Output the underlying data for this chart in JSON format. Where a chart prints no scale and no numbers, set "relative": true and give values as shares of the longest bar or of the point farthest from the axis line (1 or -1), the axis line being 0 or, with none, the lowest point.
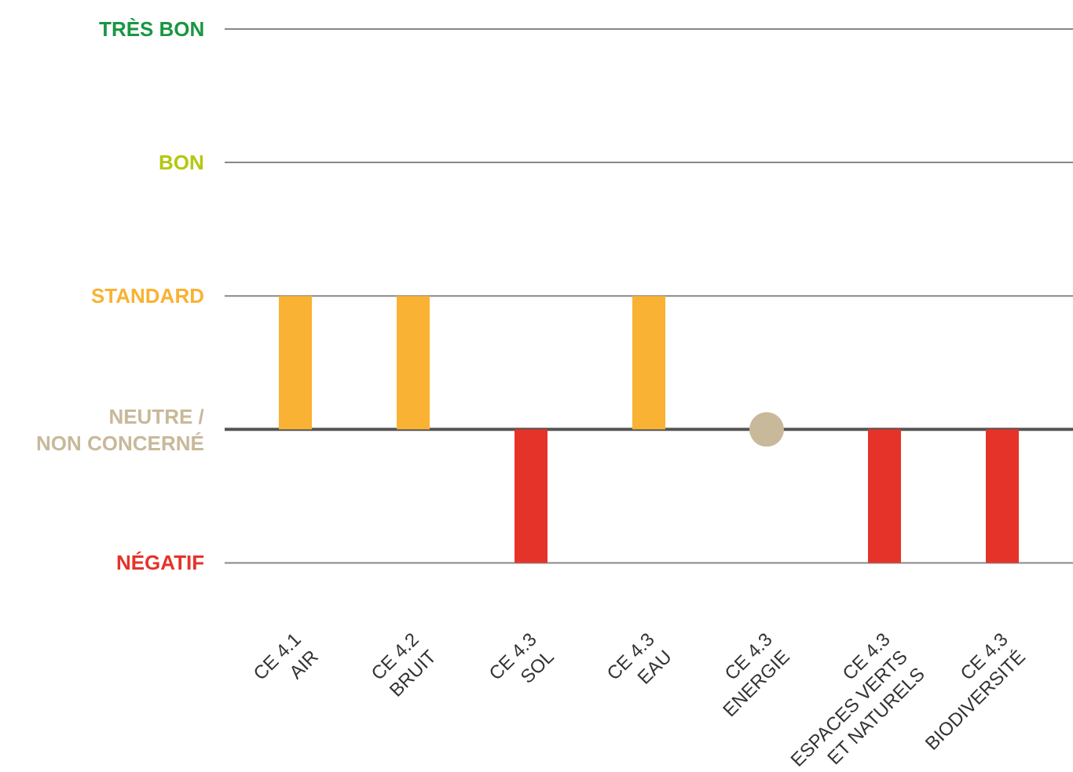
{
  "chart_data": {
    "type": "bar",
    "relative": true,
    "categories": [
      "CE 4.1\nAIR",
      "CE 4.2\nBRUIT",
      "CE 4.3\nSOL",
      "CE 4.3\nEAU",
      "CE 4.3\nENERGIE",
      "CE 4.3\nESPACES VERTS\nET NATURELS",
      "CE 4.3\nBIODIVERSITÉ"
    ],
    "series": [
      {
        "values": [
          1,
          1,
          -1,
          1,
          null,
          -1,
          -1
        ],
        "colors": [
          "#f9b233",
          "#f9b233",
          "#e63329",
          "#f9b233",
          null,
          "#e63329",
          "#e63329"
        ]
      },
      {
        "type": "scatter",
        "x": [
          "CE 4.3\nENERGIE"
        ],
        "values": [
          0
        ],
        "color": "#c8b99b",
        "marker": "circle"
      }
    ],
    "ref_lines": [
      {
        "axis": "y",
        "value": -1,
        "label": "NÉGATIF",
        "color": "#888888"
      },
      {
        "axis": "y",
        "value": 0,
        "label": "NEUTRE /\nNON CONCERNÉ",
        "color": "#555555"
      },
      {
        "axis": "y",
        "value": 1,
        "label": "STANDARD",
        "color": "#888888"
      },
      {
        "axis": "y",
        "value": 2,
        "label": "BON",
        "color": "#888888"
      },
      {
        "axis": "y",
        "value": 3,
        "label": "TRÈS BON",
        "color": "#888888"
      }
    ],
    "legend": false
  }
}
